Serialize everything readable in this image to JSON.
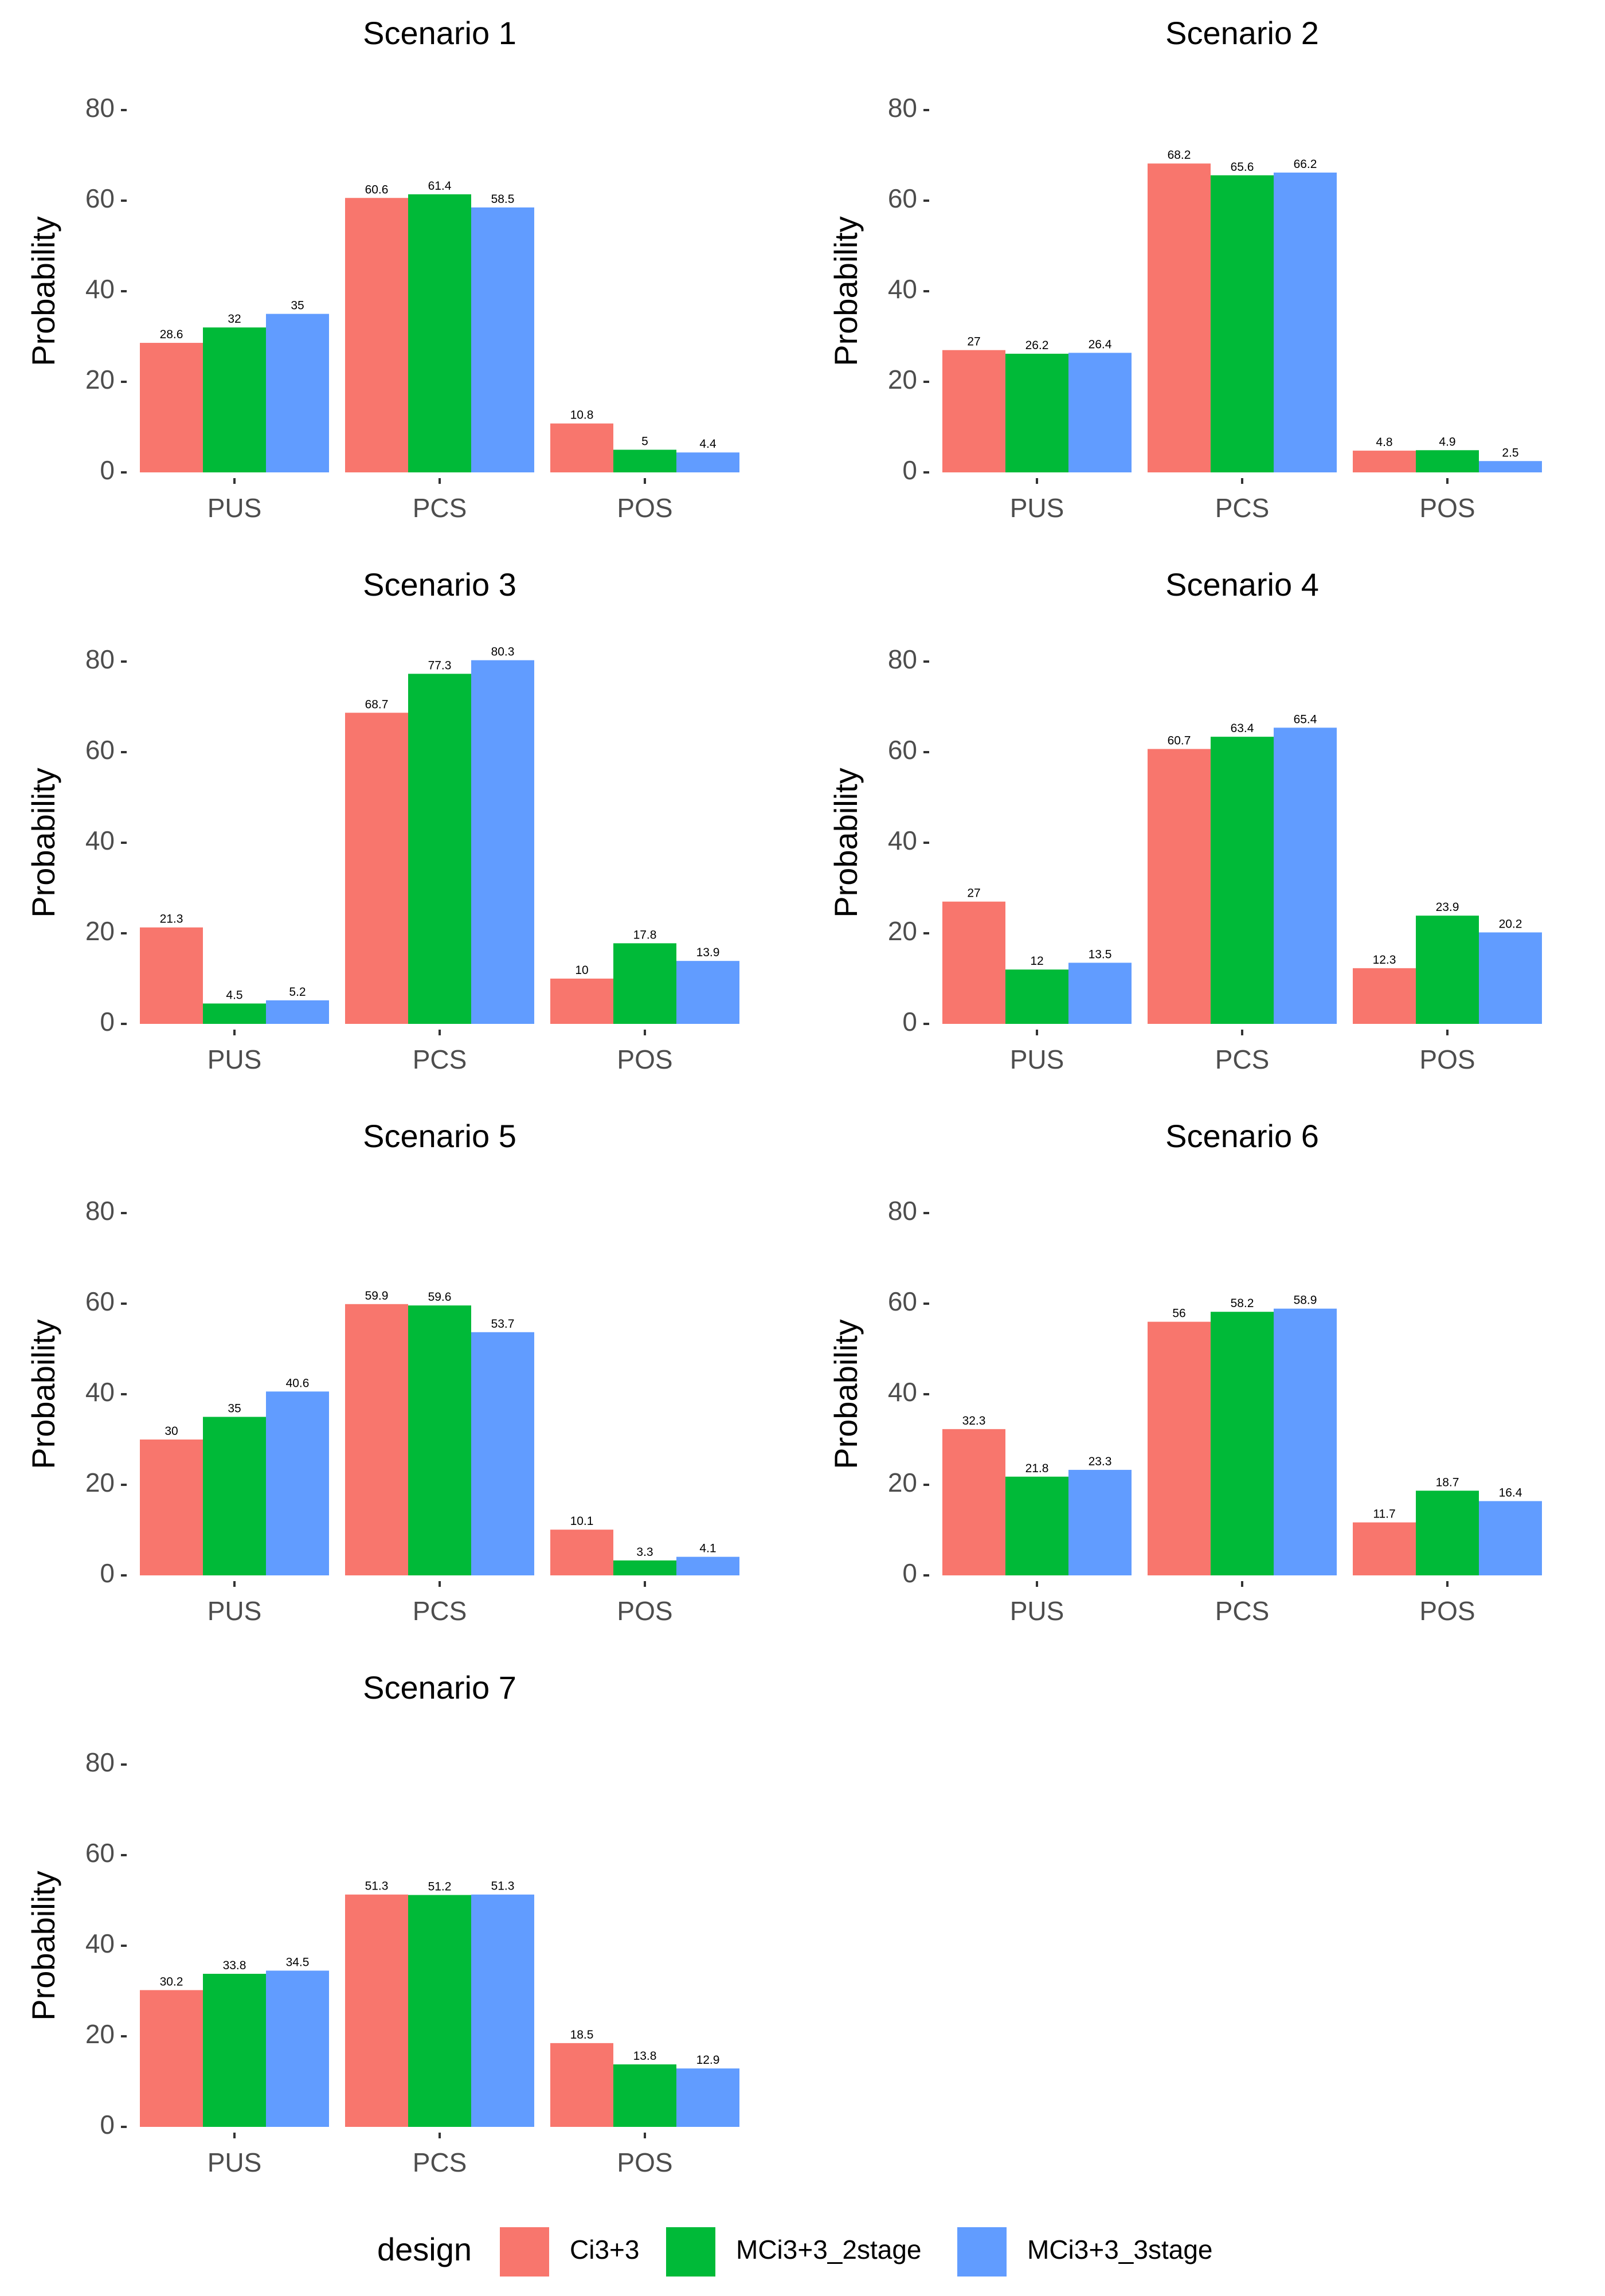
{
  "chart_data": {
    "type": "bar",
    "y_axis_label": "Probability",
    "ylim": [
      0,
      80
    ],
    "y_ticks": [
      0,
      20,
      40,
      60,
      80
    ],
    "categories": [
      "PUS",
      "PCS",
      "POS"
    ],
    "legend": {
      "title": "design",
      "position": "bottom",
      "entries": [
        {
          "name": "Ci3+3",
          "color": "#F8766D"
        },
        {
          "name": "MCi3+3_2stage",
          "color": "#00BA38"
        },
        {
          "name": "MCi3+3_3stage",
          "color": "#619CFF"
        }
      ]
    },
    "panels": [
      {
        "title": "Scenario 1",
        "series": [
          {
            "name": "Ci3+3",
            "values": [
              28.6,
              60.6,
              10.8
            ],
            "labels": [
              "28.6",
              "60.6",
              "10.8"
            ]
          },
          {
            "name": "MCi3+3_2stage",
            "values": [
              32,
              61.4,
              5
            ],
            "labels": [
              "32",
              "61.4",
              "5"
            ]
          },
          {
            "name": "MCi3+3_3stage",
            "values": [
              35,
              58.5,
              4.4
            ],
            "labels": [
              "35",
              "58.5",
              "4.4"
            ]
          }
        ]
      },
      {
        "title": "Scenario 2",
        "series": [
          {
            "name": "Ci3+3",
            "values": [
              27,
              68.2,
              4.8
            ],
            "labels": [
              "27",
              "68.2",
              "4.8"
            ]
          },
          {
            "name": "MCi3+3_2stage",
            "values": [
              26.2,
              65.6,
              4.9
            ],
            "labels": [
              "26.2",
              "65.6",
              "4.9"
            ]
          },
          {
            "name": "MCi3+3_3stage",
            "values": [
              26.4,
              66.2,
              2.5
            ],
            "labels": [
              "26.4",
              "66.2",
              "2.5"
            ]
          }
        ]
      },
      {
        "title": "Scenario 3",
        "series": [
          {
            "name": "Ci3+3",
            "values": [
              21.3,
              68.7,
              10
            ],
            "labels": [
              "21.3",
              "68.7",
              "10"
            ]
          },
          {
            "name": "MCi3+3_2stage",
            "values": [
              4.5,
              77.3,
              17.8
            ],
            "labels": [
              "4.5",
              "77.3",
              "17.8"
            ]
          },
          {
            "name": "MCi3+3_3stage",
            "values": [
              5.2,
              80.3,
              13.9
            ],
            "labels": [
              "5.2",
              "80.3",
              "13.9"
            ]
          }
        ]
      },
      {
        "title": "Scenario 4",
        "series": [
          {
            "name": "Ci3+3",
            "values": [
              27,
              60.7,
              12.3
            ],
            "labels": [
              "27",
              "60.7",
              "12.3"
            ]
          },
          {
            "name": "MCi3+3_2stage",
            "values": [
              12,
              63.4,
              23.9
            ],
            "labels": [
              "12",
              "63.4",
              "23.9"
            ]
          },
          {
            "name": "MCi3+3_3stage",
            "values": [
              13.5,
              65.4,
              20.2
            ],
            "labels": [
              "13.5",
              "65.4",
              "20.2"
            ]
          }
        ]
      },
      {
        "title": "Scenario 5",
        "series": [
          {
            "name": "Ci3+3",
            "values": [
              30,
              59.9,
              10.1
            ],
            "labels": [
              "30",
              "59.9",
              "10.1"
            ]
          },
          {
            "name": "MCi3+3_2stage",
            "values": [
              35,
              59.6,
              3.3
            ],
            "labels": [
              "35",
              "59.6",
              "3.3"
            ]
          },
          {
            "name": "MCi3+3_3stage",
            "values": [
              40.6,
              53.7,
              4.1
            ],
            "labels": [
              "40.6",
              "53.7",
              "4.1"
            ]
          }
        ]
      },
      {
        "title": "Scenario 6",
        "series": [
          {
            "name": "Ci3+3",
            "values": [
              32.3,
              56,
              11.7
            ],
            "labels": [
              "32.3",
              "56",
              "11.7"
            ]
          },
          {
            "name": "MCi3+3_2stage",
            "values": [
              21.8,
              58.2,
              18.7
            ],
            "labels": [
              "21.8",
              "58.2",
              "18.7"
            ]
          },
          {
            "name": "MCi3+3_3stage",
            "values": [
              23.3,
              58.9,
              16.4
            ],
            "labels": [
              "23.3",
              "58.9",
              "16.4"
            ]
          }
        ]
      },
      {
        "title": "Scenario 7",
        "series": [
          {
            "name": "Ci3+3",
            "values": [
              30.2,
              51.3,
              18.5
            ],
            "labels": [
              "30.2",
              "51.3",
              "18.5"
            ]
          },
          {
            "name": "MCi3+3_2stage",
            "values": [
              33.8,
              51.2,
              13.8
            ],
            "labels": [
              "33.8",
              "51.2",
              "13.8"
            ]
          },
          {
            "name": "MCi3+3_3stage",
            "values": [
              34.5,
              51.3,
              12.9
            ],
            "labels": [
              "34.5",
              "51.3",
              "12.9"
            ]
          }
        ]
      }
    ]
  }
}
